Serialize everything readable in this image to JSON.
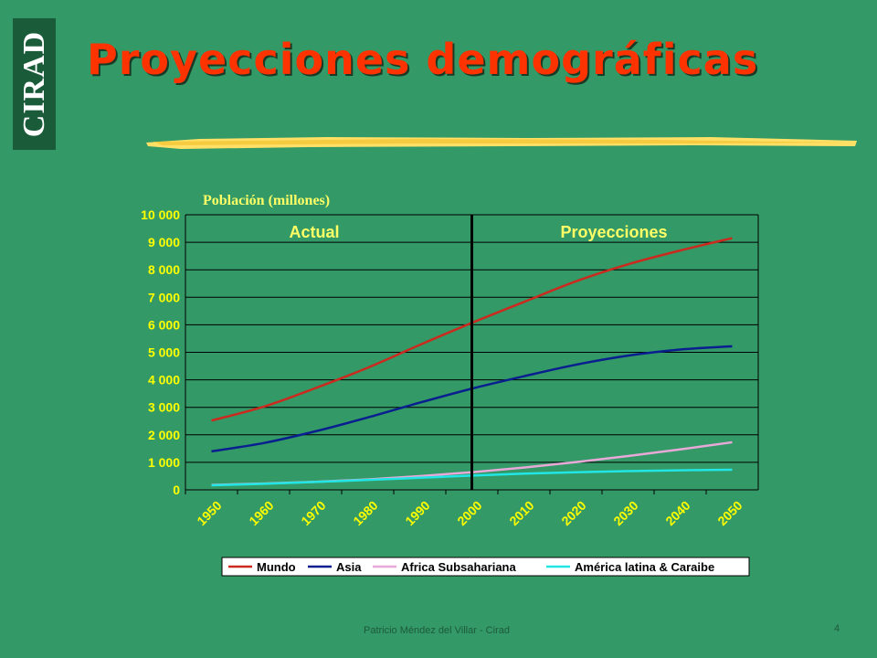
{
  "slide": {
    "logo": "CIRAD",
    "title": "Proyecciones demográficas",
    "footer": "Patricio Méndez del Villar - Cirad",
    "page_number": "4"
  },
  "colors": {
    "background": "#339966",
    "title": "#ff3300",
    "annotation": "#ffff66",
    "tick": "#ffff00",
    "mundo": "#cc2a1f",
    "asia": "#0a1f8f",
    "africa": "#e8a8d8",
    "america": "#22e6e6"
  },
  "chart_data": {
    "type": "line",
    "title": "",
    "ylabel": "Población (millones)",
    "xlabel": "",
    "xlim": [
      1950,
      2050
    ],
    "ylim": [
      0,
      10000
    ],
    "y_ticks": [
      "0",
      "1 000",
      "2 000",
      "3 000",
      "4 000",
      "5 000",
      "6 000",
      "7 000",
      "8 000",
      "9 000",
      "10 000"
    ],
    "x_ticks": [
      "1950",
      "1960",
      "1970",
      "1980",
      "1990",
      "2000",
      "2010",
      "2020",
      "2030",
      "2040",
      "2050"
    ],
    "grid": true,
    "legend_position": "bottom",
    "divider_year": 2000,
    "annotations": {
      "left": "Actual",
      "right": "Proyecciones"
    },
    "x": [
      1950,
      1960,
      1970,
      1980,
      1990,
      2000,
      2010,
      2020,
      2030,
      2040,
      2050
    ],
    "series": [
      {
        "name": "Mundo",
        "values": [
          2520,
          3020,
          3700,
          4440,
          5270,
          6070,
          6830,
          7580,
          8200,
          8700,
          9150
        ]
      },
      {
        "name": "Asia",
        "values": [
          1400,
          1700,
          2130,
          2630,
          3170,
          3680,
          4130,
          4550,
          4880,
          5100,
          5220
        ]
      },
      {
        "name": "Africa Subsahariana",
        "values": [
          180,
          230,
          290,
          380,
          500,
          640,
          810,
          1010,
          1230,
          1470,
          1730
        ]
      },
      {
        "name": "América latina & Caraibe",
        "values": [
          165,
          220,
          285,
          360,
          440,
          520,
          590,
          640,
          680,
          710,
          730
        ]
      }
    ]
  }
}
